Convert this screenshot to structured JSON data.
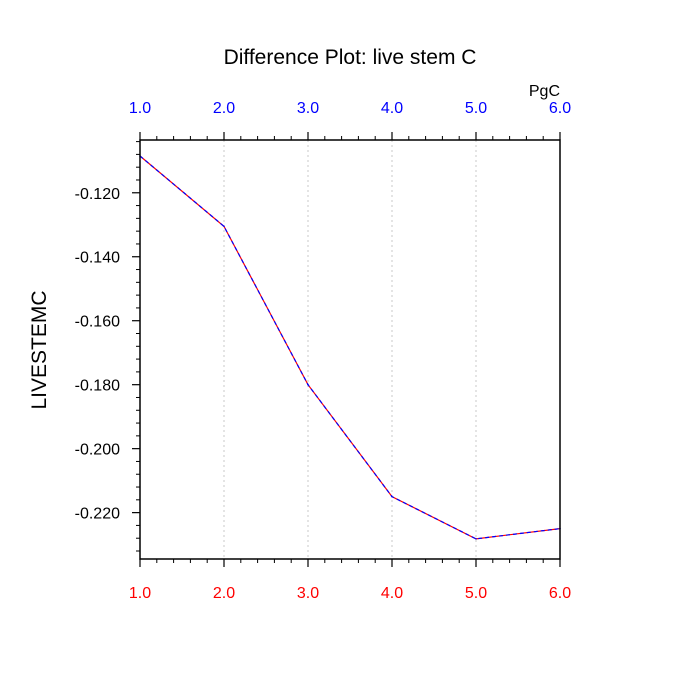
{
  "chart_data": {
    "type": "line",
    "title": "Difference Plot: live stem C",
    "ylabel": "LIVESTEMC",
    "units_label": "PgC",
    "x": [
      1.0,
      2.0,
      3.0,
      4.0,
      5.0,
      6.0
    ],
    "series": [
      {
        "values": [
          -0.1085,
          -0.1305,
          -0.18,
          -0.215,
          -0.2282,
          -0.225
        ]
      }
    ],
    "xlim": [
      1.0,
      6.0
    ],
    "ylim": [
      -0.2345,
      -0.1035
    ],
    "bottom_tick_labels": [
      "1.0",
      "2.0",
      "3.0",
      "4.0",
      "5.0",
      "6.0"
    ],
    "top_tick_labels": [
      "1.0",
      "2.0",
      "3.0",
      "4.0",
      "5.0",
      "6.0"
    ],
    "y_tick_values": [
      -0.12,
      -0.14,
      -0.16,
      -0.18,
      -0.2,
      -0.22
    ],
    "y_tick_labels": [
      "-0.120",
      "-0.140",
      "-0.160",
      "-0.180",
      "-0.200",
      "-0.220"
    ],
    "grid": "vertical dotted",
    "colors": {
      "bottom_axis_labels": "#ff0000",
      "top_axis_labels": "#0000ff",
      "line_primary": "#ff0000",
      "line_secondary": "#0000ff",
      "grid": "#c8c8c8",
      "frame": "#000000"
    }
  }
}
